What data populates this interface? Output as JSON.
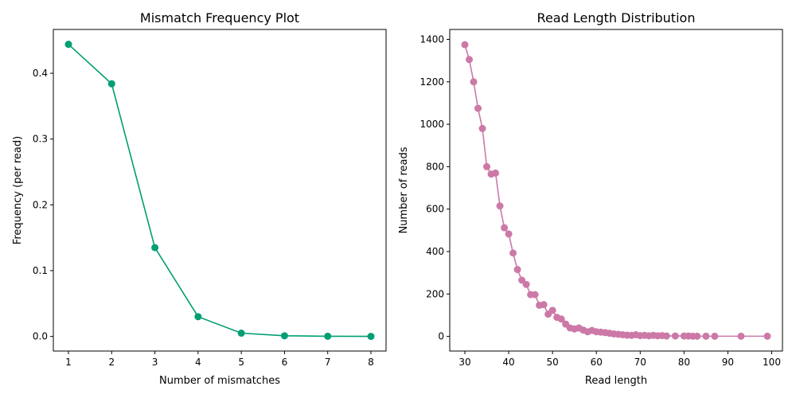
{
  "chart_data": [
    {
      "type": "line",
      "title": "Mismatch Frequency Plot",
      "xlabel": "Number of mismatches",
      "ylabel": "Frequency (per read)",
      "xlim": [
        0.65,
        8.35
      ],
      "ylim": [
        -0.0222,
        0.4666
      ],
      "xticks": [
        1,
        2,
        3,
        4,
        5,
        6,
        7,
        8
      ],
      "xtick_labels": [
        "1",
        "2",
        "3",
        "4",
        "5",
        "6",
        "7",
        "8"
      ],
      "yticks": [
        0.0,
        0.1,
        0.2,
        0.3,
        0.4
      ],
      "ytick_labels": [
        "0.0",
        "0.1",
        "0.2",
        "0.3",
        "0.4"
      ],
      "grid": false,
      "color": "#009e73",
      "marker": "circle",
      "series": [
        {
          "x": [
            1,
            2,
            3,
            4,
            5,
            6,
            7,
            8
          ],
          "values": [
            0.444,
            0.384,
            0.135,
            0.03,
            0.005,
            0.001,
            0.0003,
            0.0001
          ]
        }
      ]
    },
    {
      "type": "line",
      "title": "Read Length Distribution",
      "xlabel": "Read length",
      "ylabel": "Number of reads",
      "xlim": [
        26.55,
        102.45
      ],
      "ylim": [
        -68.9,
        1446.8
      ],
      "xticks": [
        30,
        40,
        50,
        60,
        70,
        80,
        90,
        100
      ],
      "xtick_labels": [
        "30",
        "40",
        "50",
        "60",
        "70",
        "80",
        "90",
        "100"
      ],
      "yticks": [
        0,
        200,
        400,
        600,
        800,
        1000,
        1200,
        1400
      ],
      "ytick_labels": [
        "0",
        "200",
        "400",
        "600",
        "800",
        "1000",
        "1200",
        "1400"
      ],
      "grid": false,
      "color": "#cc79a7",
      "marker": "circle",
      "series": [
        {
          "x": [
            30,
            31,
            32,
            33,
            34,
            35,
            36,
            37,
            38,
            39,
            40,
            41,
            42,
            43,
            44,
            45,
            46,
            47,
            48,
            49,
            50,
            51,
            52,
            53,
            54,
            55,
            56,
            57,
            58,
            59,
            60,
            61,
            62,
            63,
            64,
            65,
            66,
            67,
            68,
            69,
            70,
            71,
            72,
            73,
            74,
            75,
            76,
            78,
            80,
            81,
            82,
            83,
            85,
            87,
            93,
            99
          ],
          "values": [
            1375,
            1305,
            1200,
            1075,
            980,
            800,
            765,
            770,
            615,
            512,
            483,
            393,
            315,
            265,
            245,
            197,
            197,
            147,
            150,
            105,
            123,
            90,
            82,
            58,
            40,
            35,
            40,
            30,
            22,
            28,
            22,
            20,
            18,
            15,
            12,
            10,
            8,
            6,
            5,
            8,
            4,
            5,
            3,
            5,
            3,
            4,
            2,
            2,
            2,
            2,
            1,
            1,
            1,
            1,
            1,
            1
          ]
        }
      ]
    }
  ]
}
